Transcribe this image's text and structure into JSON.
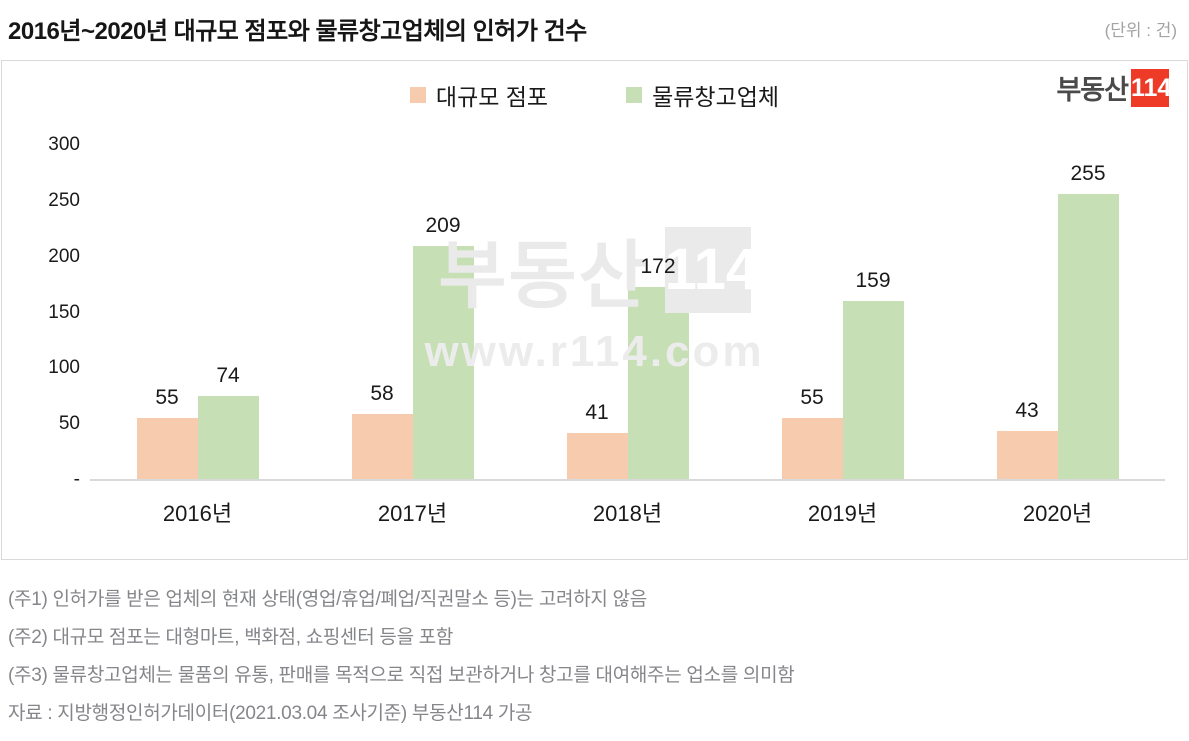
{
  "title": "2016년~2020년 대규모 점포와 물류창고업체의 인허가 건수",
  "unit_label": "(단위 : 건)",
  "logo": {
    "text": "부동산",
    "badge": "114",
    "badge_color": "#EE3B28"
  },
  "watermark": {
    "brand": "부동산",
    "badge": "114",
    "url": "www.r114.com"
  },
  "chart_data": {
    "type": "bar",
    "categories": [
      "2016년",
      "2017년",
      "2018년",
      "2019년",
      "2020년"
    ],
    "series": [
      {
        "name": "대규모 점포",
        "color": "#F7CBAD",
        "values": [
          55,
          58,
          41,
          55,
          43
        ]
      },
      {
        "name": "물류창고업체",
        "color": "#C6DFB4",
        "values": [
          74,
          209,
          172,
          159,
          255
        ]
      }
    ],
    "title": "2016년~2020년 대규모 점포와 물류창고업체의 인허가 건수",
    "xlabel": "",
    "ylabel": "",
    "ylim": [
      0,
      300
    ],
    "yticks": [
      "300",
      "250",
      "200",
      "150",
      "100",
      "50",
      "-"
    ],
    "grid": false,
    "legend_position": "top",
    "data_labels": true,
    "axis_line_color": "#D9D9D9"
  },
  "footnotes": [
    "(주1) 인허가를 받은 업체의 현재 상태(영업/휴업/폐업/직권말소 등)는 고려하지 않음",
    "(주2) 대규모 점포는 대형마트, 백화점, 쇼핑센터 등을 포함",
    "(주3) 물류창고업체는 물품의 유통, 판매를 목적으로 직접 보관하거나 창고를 대여해주는 업소를 의미함",
    "자료 : 지방행정인허가데이터(2021.03.04 조사기준) 부동산114 가공"
  ]
}
